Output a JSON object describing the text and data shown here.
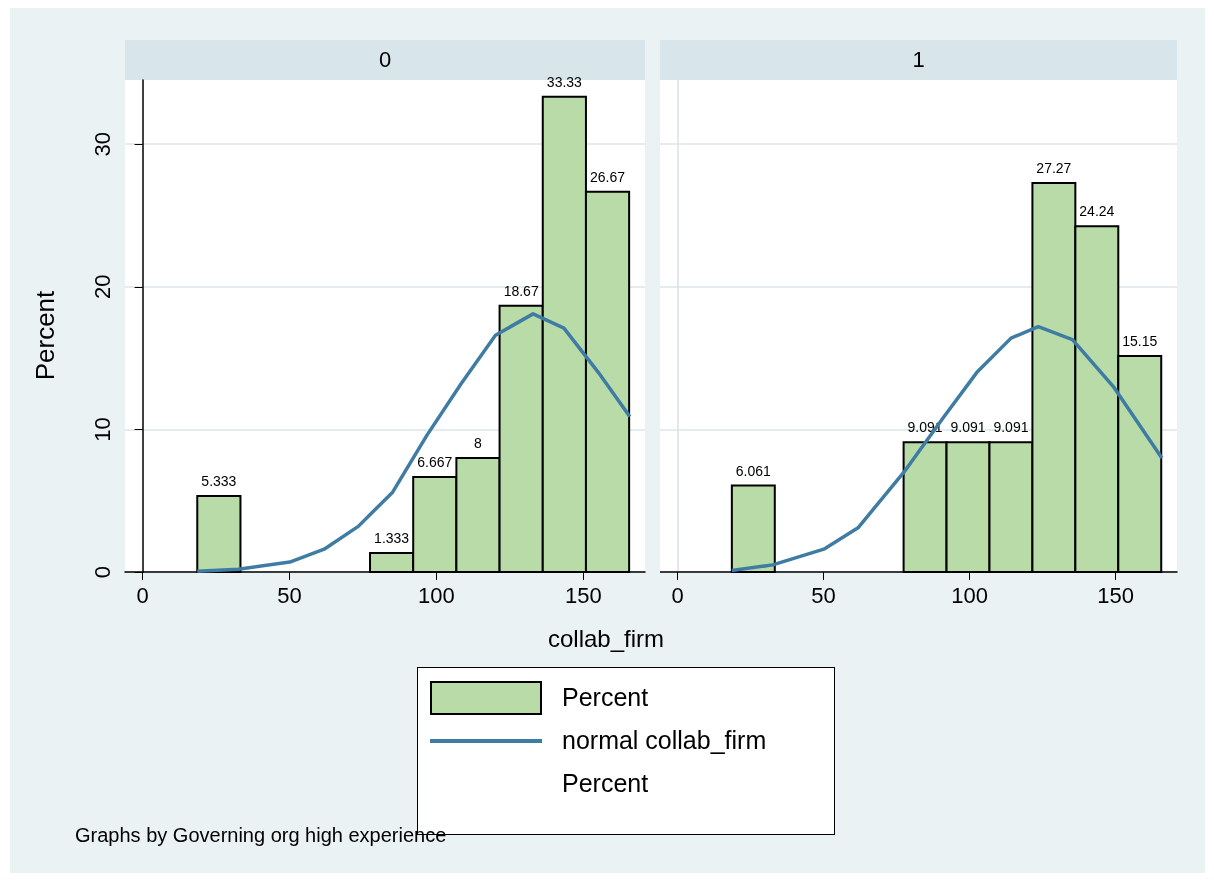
{
  "chart_data": [
    {
      "type": "histogram",
      "title": "0",
      "ylabel": "Percent",
      "xlabel": "collab_firm",
      "annotations": [
        "Graphs by Governing org high experience",
        "Percent"
      ],
      "xlim": [
        -6,
        171
      ],
      "ylim": [
        0,
        34.5
      ],
      "xticks": [
        0,
        50,
        100,
        150
      ],
      "yticks": [
        0,
        10,
        20,
        30
      ],
      "grid": "y",
      "legend": "bottom",
      "series": [
        {
          "name": "Percent",
          "color": "#b9dba8",
          "bins": [
            18.6,
            33.3,
            48.0,
            62.7,
            77.4,
            92.1,
            106.8,
            121.5,
            136.2,
            150.9,
            165.6
          ],
          "values": [
            5.333,
            0,
            0,
            0,
            1.333,
            6.667,
            8,
            18.67,
            33.33,
            26.67
          ],
          "value_labels": [
            "5.333",
            null,
            null,
            null,
            "1.333",
            "6.667",
            "8",
            "18.67",
            "33.33",
            "26.67"
          ]
        },
        {
          "type": "line",
          "name": "normal collab_firm",
          "color": "#3f7ca3",
          "x": [
            18.6,
            32.6,
            50.1,
            61.8,
            73.4,
            85.1,
            96.8,
            108.4,
            120.1,
            132.9,
            143.4,
            155.1,
            165.8
          ],
          "values": [
            0.05,
            0.2,
            0.7,
            1.6,
            3.2,
            5.6,
            9.6,
            13.2,
            16.6,
            18.1,
            17.1,
            14.0,
            10.9
          ]
        }
      ]
    },
    {
      "type": "histogram",
      "title": "1",
      "xlim": [
        -6,
        171
      ],
      "ylim": [
        0,
        34.5
      ],
      "xticks": [
        0,
        50,
        100,
        150
      ],
      "yticks": [
        0,
        10,
        20,
        30
      ],
      "grid": "y",
      "tick_labels": "x",
      "series": [
        {
          "color": "#b9dba8",
          "bins": [
            18.6,
            33.3,
            48.0,
            62.7,
            77.4,
            92.1,
            106.8,
            121.5,
            136.2,
            150.9,
            165.6
          ],
          "values": [
            6.061,
            0,
            0,
            0,
            9.091,
            9.091,
            9.091,
            27.27,
            24.24,
            15.15
          ],
          "value_labels": [
            "6.061",
            null,
            null,
            null,
            "9.091",
            "9.091",
            "9.091",
            "27.27",
            "24.24",
            "15.15"
          ]
        },
        {
          "type": "line",
          "color": "#3f7ca3",
          "x": [
            18.6,
            32.6,
            50.1,
            61.8,
            77.5,
            90.9,
            102.5,
            114.2,
            123.5,
            135.2,
            149.2,
            165.8
          ],
          "values": [
            0.1,
            0.5,
            1.6,
            3.1,
            7.0,
            10.8,
            14.0,
            16.4,
            17.2,
            16.3,
            13.0,
            8.0
          ]
        }
      ]
    }
  ]
}
